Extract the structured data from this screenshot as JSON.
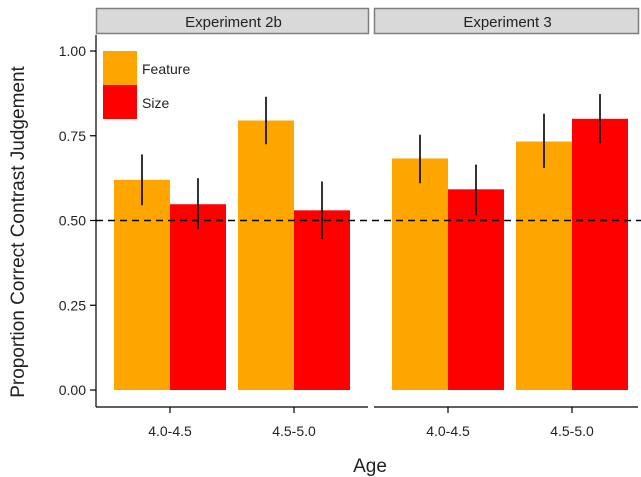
{
  "chart_data": {
    "type": "bar",
    "ylabel": "Proportion Correct Contrast Judgement",
    "xlabel": "Age",
    "ylim": [
      0,
      1.05
    ],
    "yticks": [
      0.0,
      0.25,
      0.5,
      0.75,
      1.0
    ],
    "ytick_labels": [
      "0.00",
      "0.25",
      "0.50",
      "0.75",
      "1.00"
    ],
    "reference_line": {
      "y": 0.5,
      "style": "dashed"
    },
    "legend": {
      "placement": "top-left",
      "entries": [
        {
          "name": "Feature",
          "color": "#FFA500"
        },
        {
          "name": "Size",
          "color": "#FF0000"
        }
      ]
    },
    "panels": [
      {
        "title": "Experiment 2b",
        "categories": [
          "4.0-4.5",
          "4.5-5.0"
        ],
        "series": [
          {
            "name": "Feature",
            "values": [
              0.62,
              0.795
            ],
            "error_low": [
              0.545,
              0.725
            ],
            "error_high": [
              0.695,
              0.865
            ]
          },
          {
            "name": "Size",
            "values": [
              0.548,
              0.53
            ],
            "error_low": [
              0.475,
              0.445
            ],
            "error_high": [
              0.625,
              0.615
            ]
          }
        ]
      },
      {
        "title": "Experiment 3",
        "categories": [
          "4.0-4.5",
          "4.5-5.0"
        ],
        "series": [
          {
            "name": "Feature",
            "values": [
              0.683,
              0.733
            ],
            "error_low": [
              0.61,
              0.655
            ],
            "error_high": [
              0.753,
              0.815
            ]
          },
          {
            "name": "Size",
            "values": [
              0.592,
              0.8
            ],
            "error_low": [
              0.515,
              0.728
            ],
            "error_high": [
              0.665,
              0.873
            ]
          }
        ]
      }
    ]
  }
}
